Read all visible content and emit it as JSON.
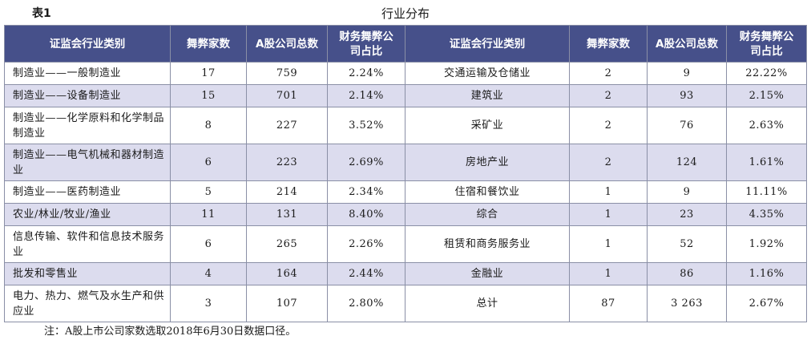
{
  "caption": "表1",
  "title": "行业分布",
  "headers": [
    "证监会行业类别",
    "舞弊家数",
    "A股公司总数",
    "财务舞弊公司占比",
    "证监会行业类别",
    "舞弊家数",
    "A股公司总数",
    "财务舞弊公司占比"
  ],
  "rows": [
    {
      "cat1": "制造业——一般制造业",
      "n1": "17",
      "t1": "759",
      "p1": "2.24%",
      "cat2": "交通运输及仓储业",
      "n2": "2",
      "t2": "9",
      "p2": "22.22%",
      "tall": false
    },
    {
      "cat1": "制造业——设备制造业",
      "n1": "15",
      "t1": "701",
      "p1": "2.14%",
      "cat2": "建筑业",
      "n2": "2",
      "t2": "93",
      "p2": "2.15%",
      "tall": false
    },
    {
      "cat1": "制造业——化学原料和化学制品制造业",
      "n1": "8",
      "t1": "227",
      "p1": "3.52%",
      "cat2": "采矿业",
      "n2": "2",
      "t2": "76",
      "p2": "2.63%",
      "tall": true
    },
    {
      "cat1": "制造业——电气机械和器材制造业",
      "n1": "6",
      "t1": "223",
      "p1": "2.69%",
      "cat2": "房地产业",
      "n2": "2",
      "t2": "124",
      "p2": "1.61%",
      "tall": true
    },
    {
      "cat1": "制造业——医药制造业",
      "n1": "5",
      "t1": "214",
      "p1": "2.34%",
      "cat2": "住宿和餐饮业",
      "n2": "1",
      "t2": "9",
      "p2": "11.11%",
      "tall": false
    },
    {
      "cat1": "农业/林业/牧业/渔业",
      "n1": "11",
      "t1": "131",
      "p1": "8.40%",
      "cat2": "综合",
      "n2": "1",
      "t2": "23",
      "p2": "4.35%",
      "tall": false
    },
    {
      "cat1": "信息传输、软件和信息技术服务业",
      "n1": "6",
      "t1": "265",
      "p1": "2.26%",
      "cat2": "租赁和商务服务业",
      "n2": "1",
      "t2": "52",
      "p2": "1.92%",
      "tall": true
    },
    {
      "cat1": "批发和零售业",
      "n1": "4",
      "t1": "164",
      "p1": "2.44%",
      "cat2": "金融业",
      "n2": "1",
      "t2": "86",
      "p2": "1.16%",
      "tall": false
    },
    {
      "cat1": "电力、热力、燃气及水生产和供应业",
      "n1": "3",
      "t1": "107",
      "p1": "2.80%",
      "cat2": "总计",
      "n2": "87",
      "t2": "3 263",
      "p2": "2.67%",
      "tall": true
    }
  ],
  "note": "注：A股上市公司家数选取2018年6月30日数据口径。"
}
